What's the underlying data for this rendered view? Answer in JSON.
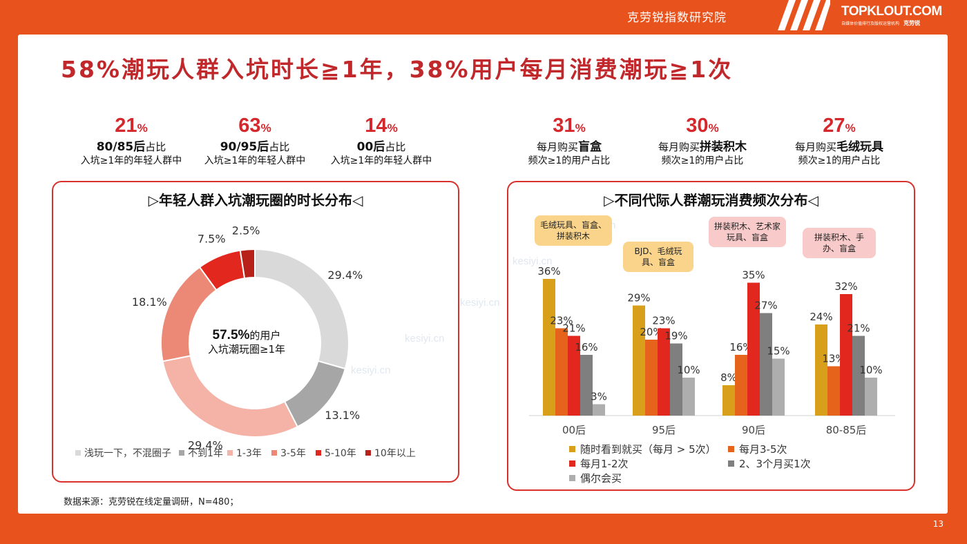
{
  "header": {
    "org": "克劳锐指数研究院",
    "logo": "TOPKLOUT.COM",
    "logo_tagline": "自媒体价值排行及版权运营机构",
    "logo_cn": "克劳锐",
    "page_number": "13"
  },
  "title": "58%潮玩人群入坑时长≧1年，38%用户每月消费潮玩≧1次",
  "stats_left": [
    {
      "value": "21",
      "unit": "%",
      "strong": "80/85后",
      "after": "占比",
      "line2": "入坑≥1年的年轻人群中"
    },
    {
      "value": "63",
      "unit": "%",
      "strong": "90/95后",
      "after": "占比",
      "line2": "入坑≥1年的年轻人群中"
    },
    {
      "value": "14",
      "unit": "%",
      "strong": "00后",
      "after": "占比",
      "line2": "入坑≥1年的年轻人群中"
    }
  ],
  "stats_right": [
    {
      "value": "31",
      "unit": "%",
      "before": "每月购买",
      "strong": "盲盒",
      "line2": "频次≥1的用户占比"
    },
    {
      "value": "30",
      "unit": "%",
      "before": "每月购买",
      "strong": "拼装积木",
      "line2": "频次≥1的用户占比"
    },
    {
      "value": "27",
      "unit": "%",
      "before": "每月购买",
      "strong": "毛绒玩具",
      "line2": "频次≥1的用户占比"
    }
  ],
  "left_panel": {
    "title": "▷年轻人群入坑潮玩圈的时长分布◁",
    "center_value": "57.5%",
    "center_line1": "的用户",
    "center_line2": "入坑潮玩圈≥1年"
  },
  "right_panel": {
    "title": "▷不同代际人群潮玩消费频次分布◁",
    "callouts": [
      "毛绒玩具、盲盒、拼装积木",
      "BJD、毛绒玩具、盲盒",
      "拼装积木、艺术家玩具、盲盒",
      "拼装积木、手办、盲盒"
    ]
  },
  "watermark": "kesiyi.cn",
  "source": "数据来源：克劳锐在线定量调研，N=480；",
  "chart_data": [
    {
      "type": "pie",
      "labels": [
        "浅玩一下，不混圈子",
        "不到1年",
        "1-3年",
        "3-5年",
        "5-10年",
        "10年以上"
      ],
      "values": [
        29.4,
        13.1,
        29.4,
        18.1,
        7.5,
        2.5
      ],
      "value_labels": [
        "29.4%",
        "13.1%",
        "29.4%",
        "18.1%",
        "7.5%",
        "2.5%"
      ],
      "colors": [
        "#D9D9D9",
        "#A6A6A6",
        "#F4B3A6",
        "#EC8876",
        "#E2281E",
        "#B8201A"
      ],
      "legend": "bottom"
    },
    {
      "type": "bar",
      "categories": [
        "00后",
        "95后",
        "90后",
        "80-85后"
      ],
      "series": [
        {
          "name": "随时看到就买（每月 > 5次）",
          "values": [
            36,
            29,
            8,
            24
          ],
          "color": "#D8A01A"
        },
        {
          "name": "每月3-5次",
          "values": [
            23,
            20,
            16,
            13
          ],
          "color": "#E5631A"
        },
        {
          "name": "每月1-2次",
          "values": [
            21,
            23,
            35,
            32
          ],
          "color": "#E2281E"
        },
        {
          "name": "2、3个月买1次",
          "values": [
            16,
            19,
            27,
            21
          ],
          "color": "#7F7F7F"
        },
        {
          "name": "偶尔会买",
          "values": [
            3,
            10,
            15,
            10
          ],
          "color": "#AEAEAE"
        }
      ],
      "legend": "bottom",
      "grid": false
    }
  ]
}
